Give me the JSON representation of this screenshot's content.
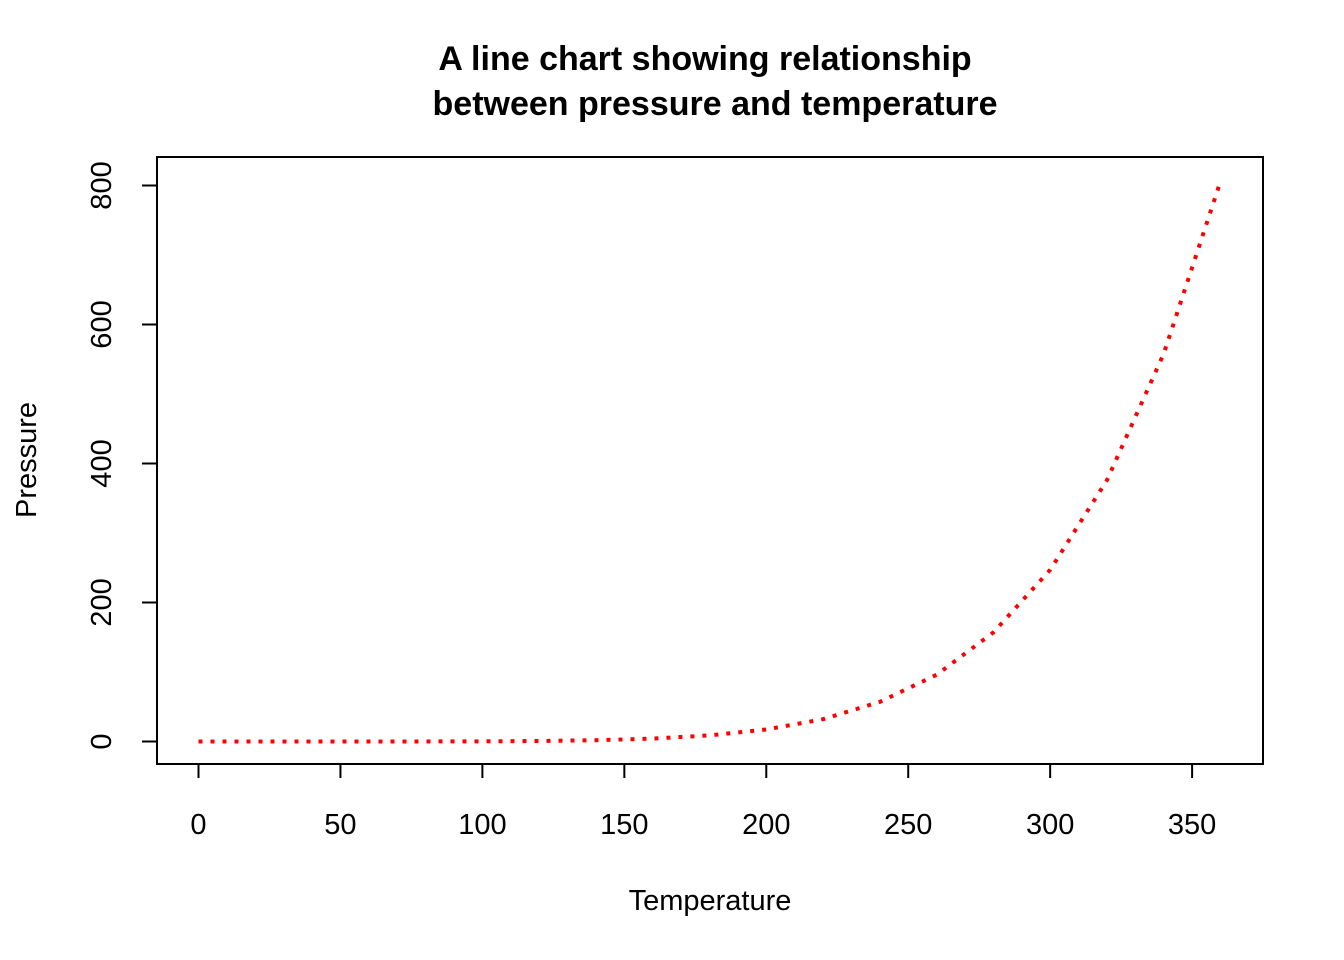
{
  "chart_data": {
    "type": "line",
    "title": "A line chart showing relationship\nbetween pressure and temperature",
    "xlabel": "Temperature",
    "ylabel": "Pressure",
    "xlim": [
      0,
      360
    ],
    "ylim": [
      0,
      806
    ],
    "x_ticks": [
      0,
      50,
      100,
      150,
      200,
      250,
      300,
      350
    ],
    "y_ticks": [
      0,
      200,
      400,
      600,
      800
    ],
    "grid": false,
    "legend": "none",
    "line_style": "dotted",
    "colors": {
      "line": "#FF0000",
      "axis": "#000000",
      "background": "#FFFFFF"
    },
    "series": [
      {
        "x": [
          0,
          20,
          40,
          60,
          80,
          100,
          120,
          140,
          160,
          180,
          200,
          220,
          240,
          260,
          280,
          300,
          320,
          340,
          360
        ],
        "values": [
          0.0002,
          0.0012,
          0.006,
          0.03,
          0.09,
          0.27,
          0.75,
          1.85,
          4.2,
          8.8,
          17.3,
          32.1,
          57,
          96,
          157,
          247,
          376,
          558,
          806
        ]
      }
    ]
  }
}
